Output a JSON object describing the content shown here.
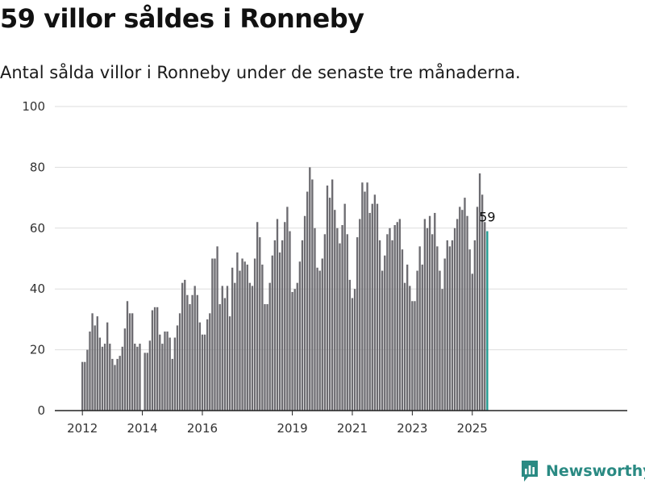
{
  "header": {
    "title": "59 villor såldes i Ronneby",
    "subtitle": "Antal sålda villor i Ronneby under de senaste tre månaderna."
  },
  "brand": {
    "name": "Newsworthy",
    "icon": "newsworthy-logo-icon",
    "color": "#2a8a83"
  },
  "colors": {
    "bar": "#6d6c71",
    "highlight": "#1f9a90",
    "grid": "#dddddd",
    "axis": "#222222"
  },
  "chart_data": {
    "type": "bar",
    "title": "59 villor såldes i Ronneby",
    "subtitle": "Antal sålda villor i Ronneby under de senaste tre månaderna.",
    "xlabel": "",
    "ylabel": "",
    "ylim": [
      0,
      100
    ],
    "yticks": [
      0,
      20,
      40,
      60,
      80,
      100
    ],
    "grid": true,
    "legend": "none",
    "start_month": "2012-01",
    "x_ticks": [
      {
        "label": "2012",
        "month": "2012-01"
      },
      {
        "label": "2014",
        "month": "2014-01"
      },
      {
        "label": "2016",
        "month": "2016-01"
      },
      {
        "label": "2019",
        "month": "2019-01"
      },
      {
        "label": "2021",
        "month": "2021-01"
      },
      {
        "label": "2023",
        "month": "2023-01"
      },
      {
        "label": "2025",
        "month": "2025-01"
      }
    ],
    "values": [
      16,
      16,
      20,
      26,
      32,
      28,
      31,
      24,
      21,
      22,
      29,
      22,
      17,
      15,
      17,
      18,
      21,
      27,
      36,
      32,
      32,
      22,
      21,
      22,
      null,
      19,
      19,
      23,
      33,
      34,
      34,
      25,
      22,
      26,
      26,
      24,
      17,
      24,
      28,
      32,
      42,
      43,
      38,
      35,
      38,
      41,
      38,
      29,
      25,
      25,
      30,
      32,
      50,
      50,
      54,
      35,
      41,
      37,
      41,
      31,
      47,
      42,
      52,
      46,
      50,
      49,
      48,
      42,
      41,
      50,
      62,
      57,
      48,
      35,
      35,
      42,
      51,
      56,
      63,
      52,
      56,
      62,
      67,
      59,
      39,
      40,
      42,
      49,
      56,
      64,
      72,
      80,
      76,
      60,
      47,
      46,
      50,
      58,
      74,
      70,
      76,
      66,
      60,
      55,
      61,
      68,
      58,
      43,
      37,
      40,
      57,
      63,
      75,
      72,
      75,
      65,
      68,
      71,
      68,
      56,
      46,
      51,
      58,
      60,
      56,
      61,
      62,
      63,
      53,
      42,
      48,
      41,
      36,
      36,
      46,
      54,
      48,
      63,
      60,
      64,
      58,
      65,
      54,
      46,
      40,
      50,
      56,
      54,
      56,
      60,
      63,
      67,
      66,
      70,
      64,
      53,
      45,
      56,
      67,
      78,
      71,
      62,
      59
    ],
    "highlight_last": true,
    "data_labels": [
      {
        "index": "last",
        "value": 59,
        "label": "59"
      }
    ]
  }
}
